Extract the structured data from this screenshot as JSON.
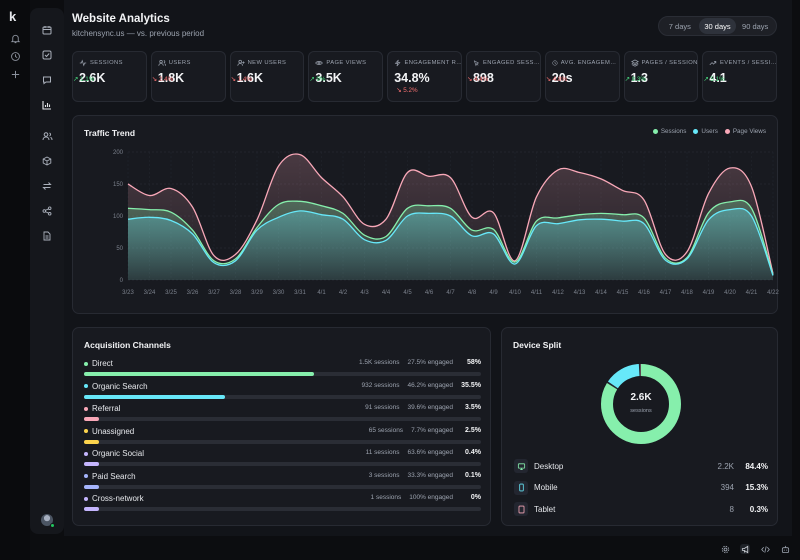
{
  "app": {
    "logo": "k"
  },
  "header": {
    "title": "Website Analytics",
    "subtitle": "kitchensync.us — vs. previous period",
    "ranges": [
      "7 days",
      "30 days",
      "90 days"
    ],
    "active_range": "30 days"
  },
  "kpis": [
    {
      "label": "Sessions",
      "value": "2.6K",
      "delta": "↗ 1.1%",
      "dir": "up",
      "icon": "pulse-icon"
    },
    {
      "label": "Users",
      "value": "1.8K",
      "delta": "↘ 2.4%",
      "dir": "down",
      "icon": "users-icon"
    },
    {
      "label": "New Users",
      "value": "1.6K",
      "delta": "↘ 1.4%",
      "dir": "down",
      "icon": "user-plus-icon"
    },
    {
      "label": "Page Views",
      "value": "3.5K",
      "delta": "↗ 9%",
      "dir": "up",
      "icon": "eye-icon"
    },
    {
      "label": "Engagement Rate",
      "value": "34.8%",
      "delta": "↘ 5.2%",
      "dir": "down",
      "icon": "bolt-icon"
    },
    {
      "label": "Engaged Sessions",
      "value": "898",
      "delta": "↘ 4.4%",
      "dir": "down",
      "icon": "cursor-icon"
    },
    {
      "label": "Avg. Engagement Time",
      "value": "20s",
      "delta": "↘ 4.8%",
      "dir": "down",
      "icon": "clock-icon"
    },
    {
      "label": "Pages / Session",
      "value": "1.3",
      "delta": "↗ 8.3%",
      "dir": "up",
      "icon": "layers-icon"
    },
    {
      "label": "Events / Session",
      "value": "4.1",
      "delta": "↗ 5.1%",
      "dir": "up",
      "icon": "trend-icon"
    }
  ],
  "trend": {
    "title": "Traffic Trend",
    "legend": [
      {
        "name": "Sessions",
        "color": "#86efac"
      },
      {
        "name": "Users",
        "color": "#67e8f9"
      },
      {
        "name": "Page Views",
        "color": "#f9a8b8"
      }
    ]
  },
  "chart_data": {
    "type": "area",
    "title": "Traffic Trend",
    "x": [
      "3/23",
      "3/24",
      "3/25",
      "3/26",
      "3/27",
      "3/28",
      "3/29",
      "3/30",
      "3/31",
      "4/1",
      "4/2",
      "4/3",
      "4/4",
      "4/5",
      "4/6",
      "4/7",
      "4/8",
      "4/9",
      "4/10",
      "4/11",
      "4/12",
      "4/13",
      "4/14",
      "4/15",
      "4/16",
      "4/17",
      "4/18",
      "4/19",
      "4/20",
      "4/21",
      "4/22"
    ],
    "ylim": [
      0,
      200
    ],
    "yticks": [
      0,
      50,
      100,
      150,
      200
    ],
    "grid": true,
    "legend_position": "top-right",
    "series": [
      {
        "name": "Sessions",
        "color": "#86efac",
        "values": [
          112,
          110,
          106,
          78,
          30,
          33,
          82,
          118,
          123,
          116,
          104,
          70,
          68,
          112,
          116,
          112,
          78,
          79,
          28,
          92,
          97,
          102,
          104,
          102,
          97,
          34,
          35,
          105,
          122,
          112,
          8
        ]
      },
      {
        "name": "Users",
        "color": "#67e8f9",
        "values": [
          95,
          98,
          93,
          72,
          27,
          30,
          78,
          98,
          108,
          102,
          95,
          63,
          62,
          100,
          104,
          100,
          69,
          72,
          25,
          85,
          88,
          94,
          95,
          92,
          88,
          31,
          33,
          94,
          110,
          100,
          7
        ]
      },
      {
        "name": "Page Views",
        "color": "#f9a8b8",
        "values": [
          150,
          132,
          143,
          114,
          38,
          40,
          94,
          178,
          196,
          160,
          130,
          87,
          95,
          168,
          162,
          160,
          98,
          105,
          30,
          130,
          172,
          168,
          158,
          140,
          125,
          40,
          44,
          135,
          175,
          146,
          10
        ]
      }
    ]
  },
  "acquisition": {
    "title": "Acquisition Channels",
    "rows": [
      {
        "name": "Direct",
        "sessions": "1.5K sessions",
        "engaged": "27.5% engaged",
        "pct": "58%",
        "share": 0.58,
        "color": "#86efac"
      },
      {
        "name": "Organic Search",
        "sessions": "932 sessions",
        "engaged": "46.2% engaged",
        "pct": "35.5%",
        "share": 0.355,
        "color": "#67e8f9"
      },
      {
        "name": "Referral",
        "sessions": "91 sessions",
        "engaged": "39.6% engaged",
        "pct": "3.5%",
        "share": 0.035,
        "color": "#f9a8b8"
      },
      {
        "name": "Unassigned",
        "sessions": "65 sessions",
        "engaged": "7.7% engaged",
        "pct": "2.5%",
        "share": 0.025,
        "color": "#fcd34d"
      },
      {
        "name": "Organic Social",
        "sessions": "11 sessions",
        "engaged": "63.6% engaged",
        "pct": "0.4%",
        "share": 0.004,
        "color": "#c4b5fd"
      },
      {
        "name": "Paid Search",
        "sessions": "3 sessions",
        "engaged": "33.3% engaged",
        "pct": "0.1%",
        "share": 0.001,
        "color": "#a5b4fc"
      },
      {
        "name": "Cross-network",
        "sessions": "1 sessions",
        "engaged": "100% engaged",
        "pct": "0%",
        "share": 0.0,
        "color": "#c4b5fd"
      }
    ]
  },
  "devices": {
    "title": "Device Split",
    "total": "2.6K",
    "total_label": "sessions",
    "rows": [
      {
        "name": "Desktop",
        "count": "2.2K",
        "pct": "84.4%",
        "share": 0.844,
        "color": "#86efac",
        "icon": "monitor-icon"
      },
      {
        "name": "Mobile",
        "count": "394",
        "pct": "15.3%",
        "share": 0.153,
        "color": "#67e8f9",
        "icon": "phone-icon"
      },
      {
        "name": "Tablet",
        "count": "8",
        "pct": "0.3%",
        "share": 0.003,
        "color": "#f9a8b8",
        "icon": "tablet-icon"
      }
    ]
  }
}
